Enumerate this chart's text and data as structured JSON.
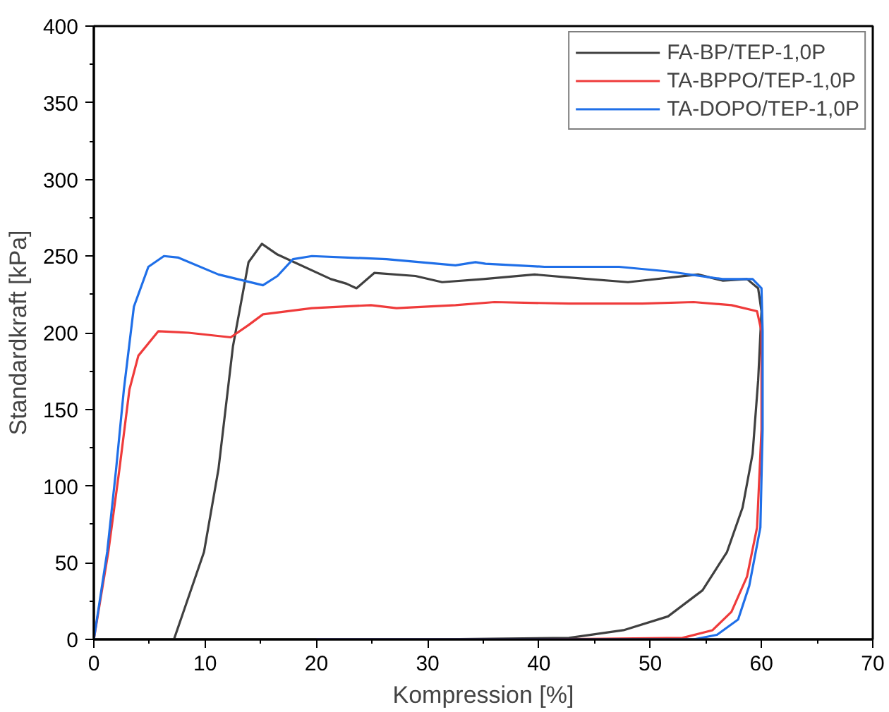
{
  "chart_data": {
    "type": "line",
    "xlabel": "Kompression [%]",
    "ylabel": "Standardkraft [kPa]",
    "xlim": [
      0,
      70
    ],
    "ylim": [
      0,
      400
    ],
    "xticks": [
      0,
      10,
      20,
      30,
      40,
      50,
      60,
      70
    ],
    "yticks": [
      0,
      50,
      100,
      150,
      200,
      250,
      300,
      350,
      400
    ],
    "grid": false,
    "legend": "top right",
    "marker": "none",
    "line_style": "solid",
    "series": [
      {
        "name": "FA-BP/TEP-1,0P",
        "color": "#404040",
        "x": [
          0,
          7.2,
          9.9,
          11.2,
          12.5,
          13.9,
          15.1,
          16.5,
          21.3,
          22.7,
          23.6,
          25.2,
          28.9,
          31.3,
          35,
          39.6,
          42.7,
          48,
          54.3,
          56.5,
          58.7,
          59.7,
          60,
          59.7,
          59.2,
          58.3,
          56.9,
          54.7,
          51.6,
          47.6,
          42.7,
          30,
          7.2
        ],
        "values": [
          0,
          0,
          57,
          111,
          191,
          246,
          258,
          251,
          235,
          232,
          229,
          239,
          237,
          233,
          235,
          238,
          236,
          233,
          238,
          234,
          235,
          229,
          214,
          169,
          121,
          86,
          57,
          32,
          15,
          6,
          1,
          0,
          0
        ]
      },
      {
        "name": "TA-BPPO/TEP-1,0P",
        "color": "#ef3b3b",
        "x": [
          0,
          1.3,
          2.3,
          3.2,
          4.0,
          5.8,
          8.5,
          12.3,
          13.9,
          15.2,
          19.6,
          24.9,
          27.2,
          32.5,
          36,
          42.7,
          49.3,
          53.9,
          57.3,
          59.6,
          60,
          60,
          59.6,
          58.7,
          57.3,
          55.6,
          52.9,
          40,
          20
        ],
        "values": [
          0,
          57,
          111,
          163,
          185,
          201,
          200,
          197,
          205,
          212,
          216,
          218,
          216,
          218,
          220,
          219,
          219,
          220,
          218,
          214,
          201,
          137,
          73,
          41,
          18,
          6,
          1,
          0,
          0
        ]
      },
      {
        "name": "TA-DOPO/TEP-1,0P",
        "color": "#1f6fe8",
        "x": [
          0,
          1.2,
          2.0,
          2.7,
          3.6,
          4.9,
          6.3,
          7.6,
          11.2,
          12.9,
          15.2,
          16.5,
          17.9,
          19.6,
          26.3,
          32.5,
          34.3,
          35.2,
          40.5,
          47.2,
          51.6,
          56.5,
          59.2,
          60,
          60.1,
          60.1,
          59.9,
          58.9,
          57.9,
          56,
          53.9,
          40,
          20
        ],
        "values": [
          0,
          57,
          111,
          163,
          217,
          243,
          250,
          249,
          238,
          235,
          231,
          237,
          248,
          250,
          248,
          244,
          246,
          245,
          243,
          243,
          240,
          235,
          235,
          229,
          201,
          137,
          73,
          35,
          13,
          3,
          0,
          0,
          0
        ]
      }
    ]
  }
}
